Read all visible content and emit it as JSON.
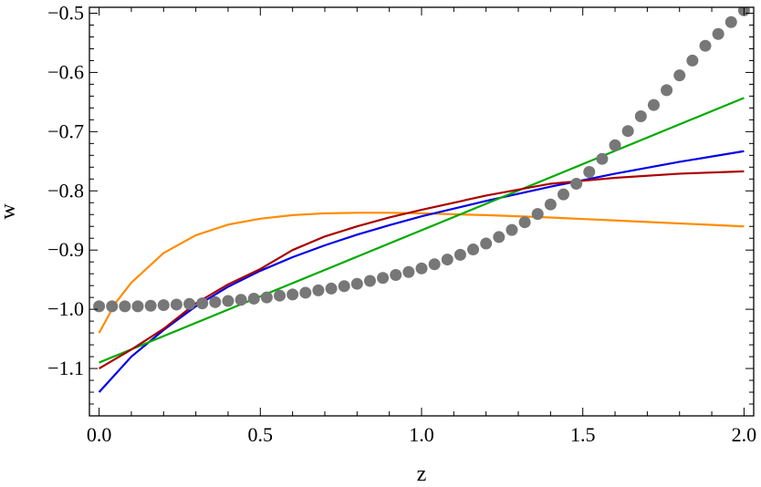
{
  "chart_data": {
    "type": "line",
    "title": "",
    "xlabel": "z",
    "ylabel": "w",
    "xlim": [
      -0.03,
      2.03
    ],
    "ylim": [
      -1.18,
      -0.49
    ],
    "x_ticks": [
      0.0,
      0.5,
      1.0,
      1.5,
      2.0
    ],
    "x_tick_labels": [
      "0.0",
      "0.5",
      "1.0",
      "1.5",
      "2.0"
    ],
    "y_ticks": [
      -1.1,
      -1.0,
      -0.9,
      -0.8,
      -0.7,
      -0.6,
      -0.5
    ],
    "y_tick_labels": [
      "−1.1",
      "−1.0",
      "−0.9",
      "−0.8",
      "−0.7",
      "−0.6",
      "−0.5"
    ],
    "grid": false,
    "legend": "none",
    "series": [
      {
        "kind": "line",
        "color": "#ff8c00",
        "x": [
          0.0,
          0.05,
          0.1,
          0.2,
          0.3,
          0.4,
          0.5,
          0.6,
          0.7,
          0.8,
          0.9,
          1.0,
          1.2,
          1.4,
          1.6,
          1.8,
          2.0
        ],
        "y": [
          -1.04,
          -0.99,
          -0.955,
          -0.905,
          -0.875,
          -0.857,
          -0.847,
          -0.841,
          -0.838,
          -0.837,
          -0.837,
          -0.838,
          -0.841,
          -0.845,
          -0.85,
          -0.855,
          -0.86
        ]
      },
      {
        "kind": "line",
        "color": "#0000e6",
        "x": [
          0.0,
          0.1,
          0.2,
          0.3,
          0.4,
          0.5,
          0.6,
          0.7,
          0.8,
          0.9,
          1.0,
          1.2,
          1.4,
          1.6,
          1.8,
          2.0
        ],
        "y": [
          -1.14,
          -1.08,
          -1.035,
          -0.995,
          -0.962,
          -0.935,
          -0.912,
          -0.892,
          -0.874,
          -0.858,
          -0.843,
          -0.817,
          -0.793,
          -0.771,
          -0.751,
          -0.733
        ]
      },
      {
        "kind": "line",
        "color": "#00aa00",
        "x": [
          0.0,
          2.0
        ],
        "y": [
          -1.09,
          -0.643
        ]
      },
      {
        "kind": "line",
        "color": "#aa0000",
        "x": [
          0.0,
          0.1,
          0.2,
          0.3,
          0.4,
          0.5,
          0.6,
          0.7,
          0.8,
          0.9,
          1.0,
          1.2,
          1.4,
          1.6,
          1.8,
          2.0
        ],
        "y": [
          -1.1,
          -1.068,
          -1.033,
          -0.99,
          -0.958,
          -0.932,
          -0.9,
          -0.877,
          -0.86,
          -0.845,
          -0.832,
          -0.808,
          -0.788,
          -0.778,
          -0.771,
          -0.767
        ]
      },
      {
        "kind": "scatter",
        "color": "#777777",
        "x": [
          0.0,
          0.04,
          0.08,
          0.12,
          0.16,
          0.2,
          0.24,
          0.28,
          0.32,
          0.36,
          0.4,
          0.44,
          0.48,
          0.52,
          0.56,
          0.6,
          0.64,
          0.68,
          0.72,
          0.76,
          0.8,
          0.84,
          0.88,
          0.92,
          0.96,
          1.0,
          1.04,
          1.08,
          1.12,
          1.16,
          1.2,
          1.24,
          1.28,
          1.32,
          1.36,
          1.4,
          1.44,
          1.48,
          1.52,
          1.56,
          1.6,
          1.64,
          1.68,
          1.72,
          1.76,
          1.8,
          1.84,
          1.88,
          1.92,
          1.96,
          2.0
        ],
        "y": [
          -0.995,
          -0.995,
          -0.995,
          -0.995,
          -0.994,
          -0.993,
          -0.992,
          -0.991,
          -0.99,
          -0.988,
          -0.986,
          -0.984,
          -0.982,
          -0.98,
          -0.977,
          -0.975,
          -0.972,
          -0.968,
          -0.965,
          -0.961,
          -0.957,
          -0.952,
          -0.947,
          -0.942,
          -0.937,
          -0.931,
          -0.924,
          -0.916,
          -0.908,
          -0.899,
          -0.889,
          -0.878,
          -0.866,
          -0.853,
          -0.839,
          -0.823,
          -0.806,
          -0.788,
          -0.768,
          -0.746,
          -0.723,
          -0.699,
          -0.674,
          -0.655,
          -0.63,
          -0.605,
          -0.58,
          -0.555,
          -0.535,
          -0.515,
          -0.495
        ]
      }
    ]
  }
}
